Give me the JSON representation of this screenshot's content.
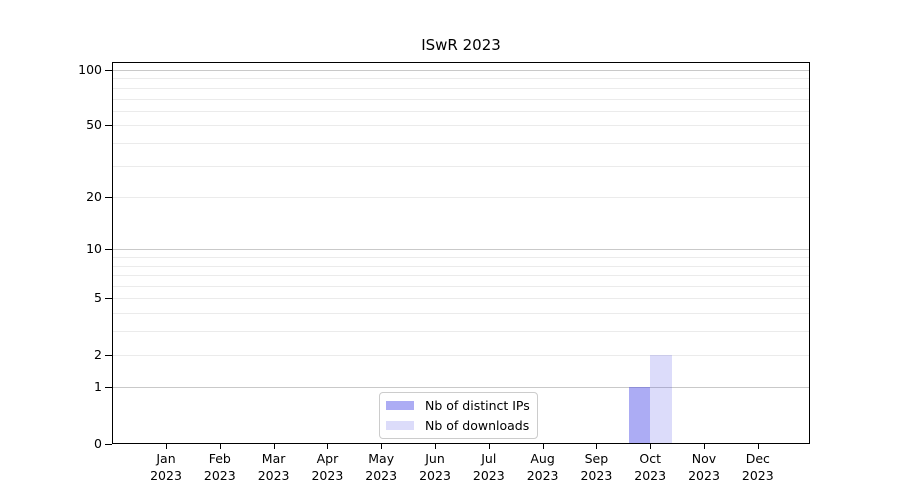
{
  "chart_data": {
    "type": "bar",
    "title": "ISwR 2023",
    "categories": [
      "Jan 2023",
      "Feb 2023",
      "Mar 2023",
      "Apr 2023",
      "May 2023",
      "Jun 2023",
      "Jul 2023",
      "Aug 2023",
      "Sep 2023",
      "Oct 2023",
      "Nov 2023",
      "Dec 2023"
    ],
    "series": [
      {
        "name": "Nb of distinct IPs",
        "color": "rgba(70,70,230,0.45)",
        "values": [
          0,
          0,
          0,
          0,
          0,
          0,
          0,
          0,
          0,
          1,
          0,
          0
        ]
      },
      {
        "name": "Nb of downloads",
        "color": "rgba(70,70,230,0.19)",
        "values": [
          0,
          0,
          0,
          0,
          0,
          0,
          0,
          0,
          0,
          2,
          0,
          0
        ]
      }
    ],
    "xlabel": "",
    "ylabel": "",
    "yscale": "log1p",
    "yticks": [
      0,
      1,
      2,
      5,
      10,
      20,
      50,
      100
    ],
    "ylim": [
      0,
      111
    ],
    "grid": "horizontal, log minor + major",
    "legend_position": "lower center",
    "colors": {
      "grid_minor": "#ebebeb",
      "grid_major": "#c9c9c9",
      "axis": "#000000",
      "text": "#000000",
      "legend_border": "#cccccc"
    }
  }
}
